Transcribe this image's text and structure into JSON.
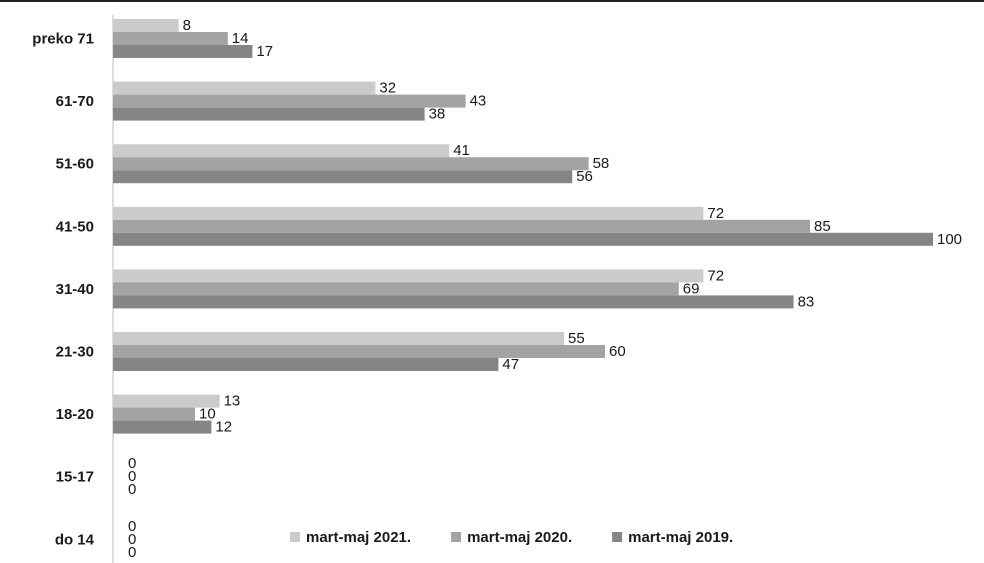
{
  "chart_data": {
    "type": "bar",
    "orientation": "horizontal",
    "categories": [
      "preko 71",
      "61-70",
      "51-60",
      "41-50",
      "31-40",
      "21-30",
      "18-20",
      "15-17",
      "do 14"
    ],
    "series": [
      {
        "name": "mart-maj 2021.",
        "color": "#cbcbcb",
        "values": [
          8,
          32,
          41,
          72,
          72,
          55,
          13,
          0,
          0
        ]
      },
      {
        "name": "mart-maj 2020.",
        "color": "#a3a3a3",
        "values": [
          14,
          43,
          58,
          85,
          69,
          60,
          10,
          0,
          0
        ]
      },
      {
        "name": "mart-maj 2019.",
        "color": "#858585",
        "values": [
          17,
          38,
          56,
          100,
          83,
          47,
          12,
          0,
          0
        ]
      }
    ],
    "xlim": [
      0,
      100
    ],
    "title": "",
    "xlabel": "",
    "ylabel": "",
    "grid": false,
    "legend_position": "bottom-right"
  }
}
